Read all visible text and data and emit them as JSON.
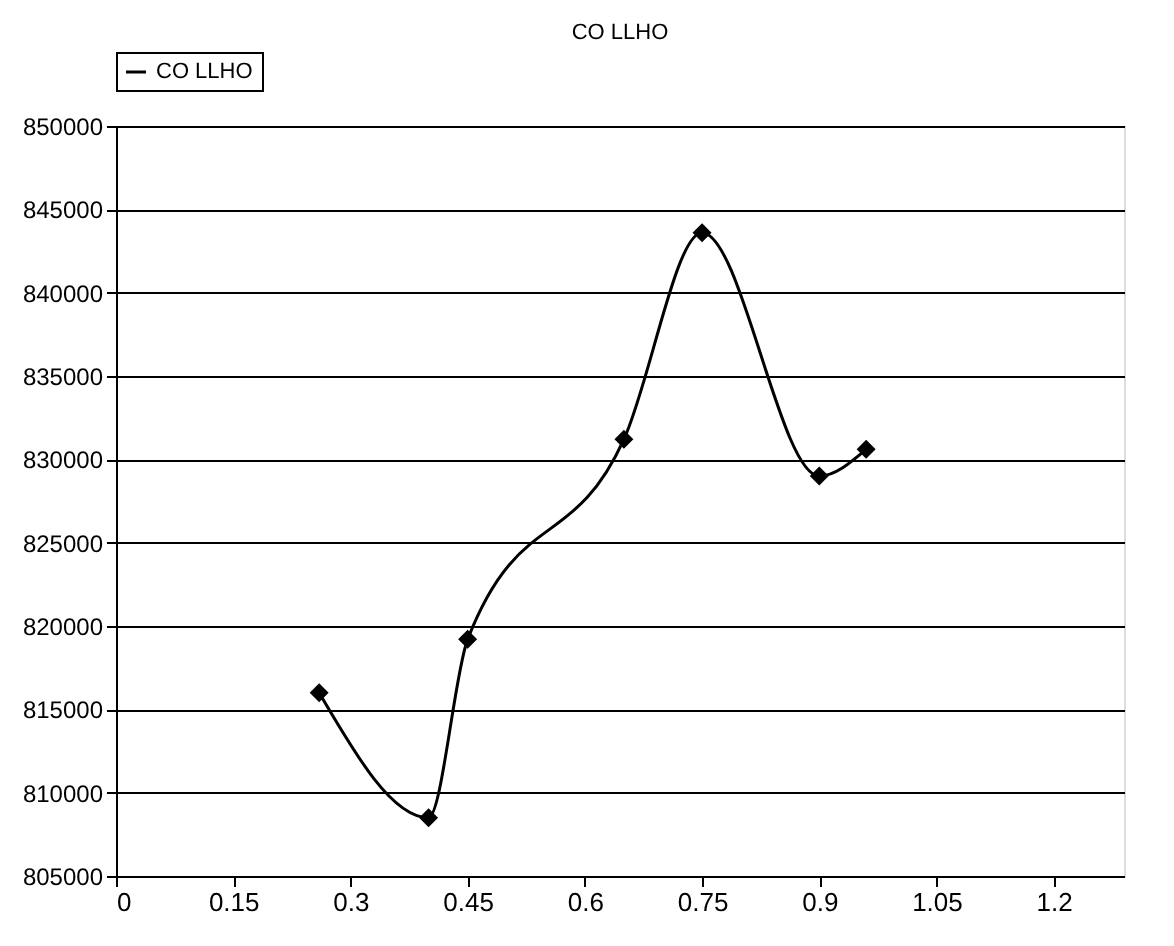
{
  "chart_data": {
    "type": "line",
    "title": "CO LLHO",
    "x": [
      0.26,
      0.4,
      0.45,
      0.65,
      0.75,
      0.9,
      0.96
    ],
    "series": [
      {
        "name": "CO LLHO",
        "color": "#000000",
        "values": [
          816000,
          808500,
          819200,
          831200,
          843600,
          829000,
          830600
        ]
      }
    ],
    "xlim": [
      0,
      1.29
    ],
    "xticks": [
      0,
      0.15,
      0.3,
      0.45,
      0.6,
      0.75,
      0.9,
      1.05,
      1.2
    ],
    "ylim": [
      805000,
      850000
    ],
    "yticks": [
      805000,
      810000,
      815000,
      820000,
      825000,
      830000,
      835000,
      840000,
      845000,
      850000
    ],
    "grid": "y",
    "legend": "top",
    "marker": "diamond",
    "line_style": "solid"
  }
}
